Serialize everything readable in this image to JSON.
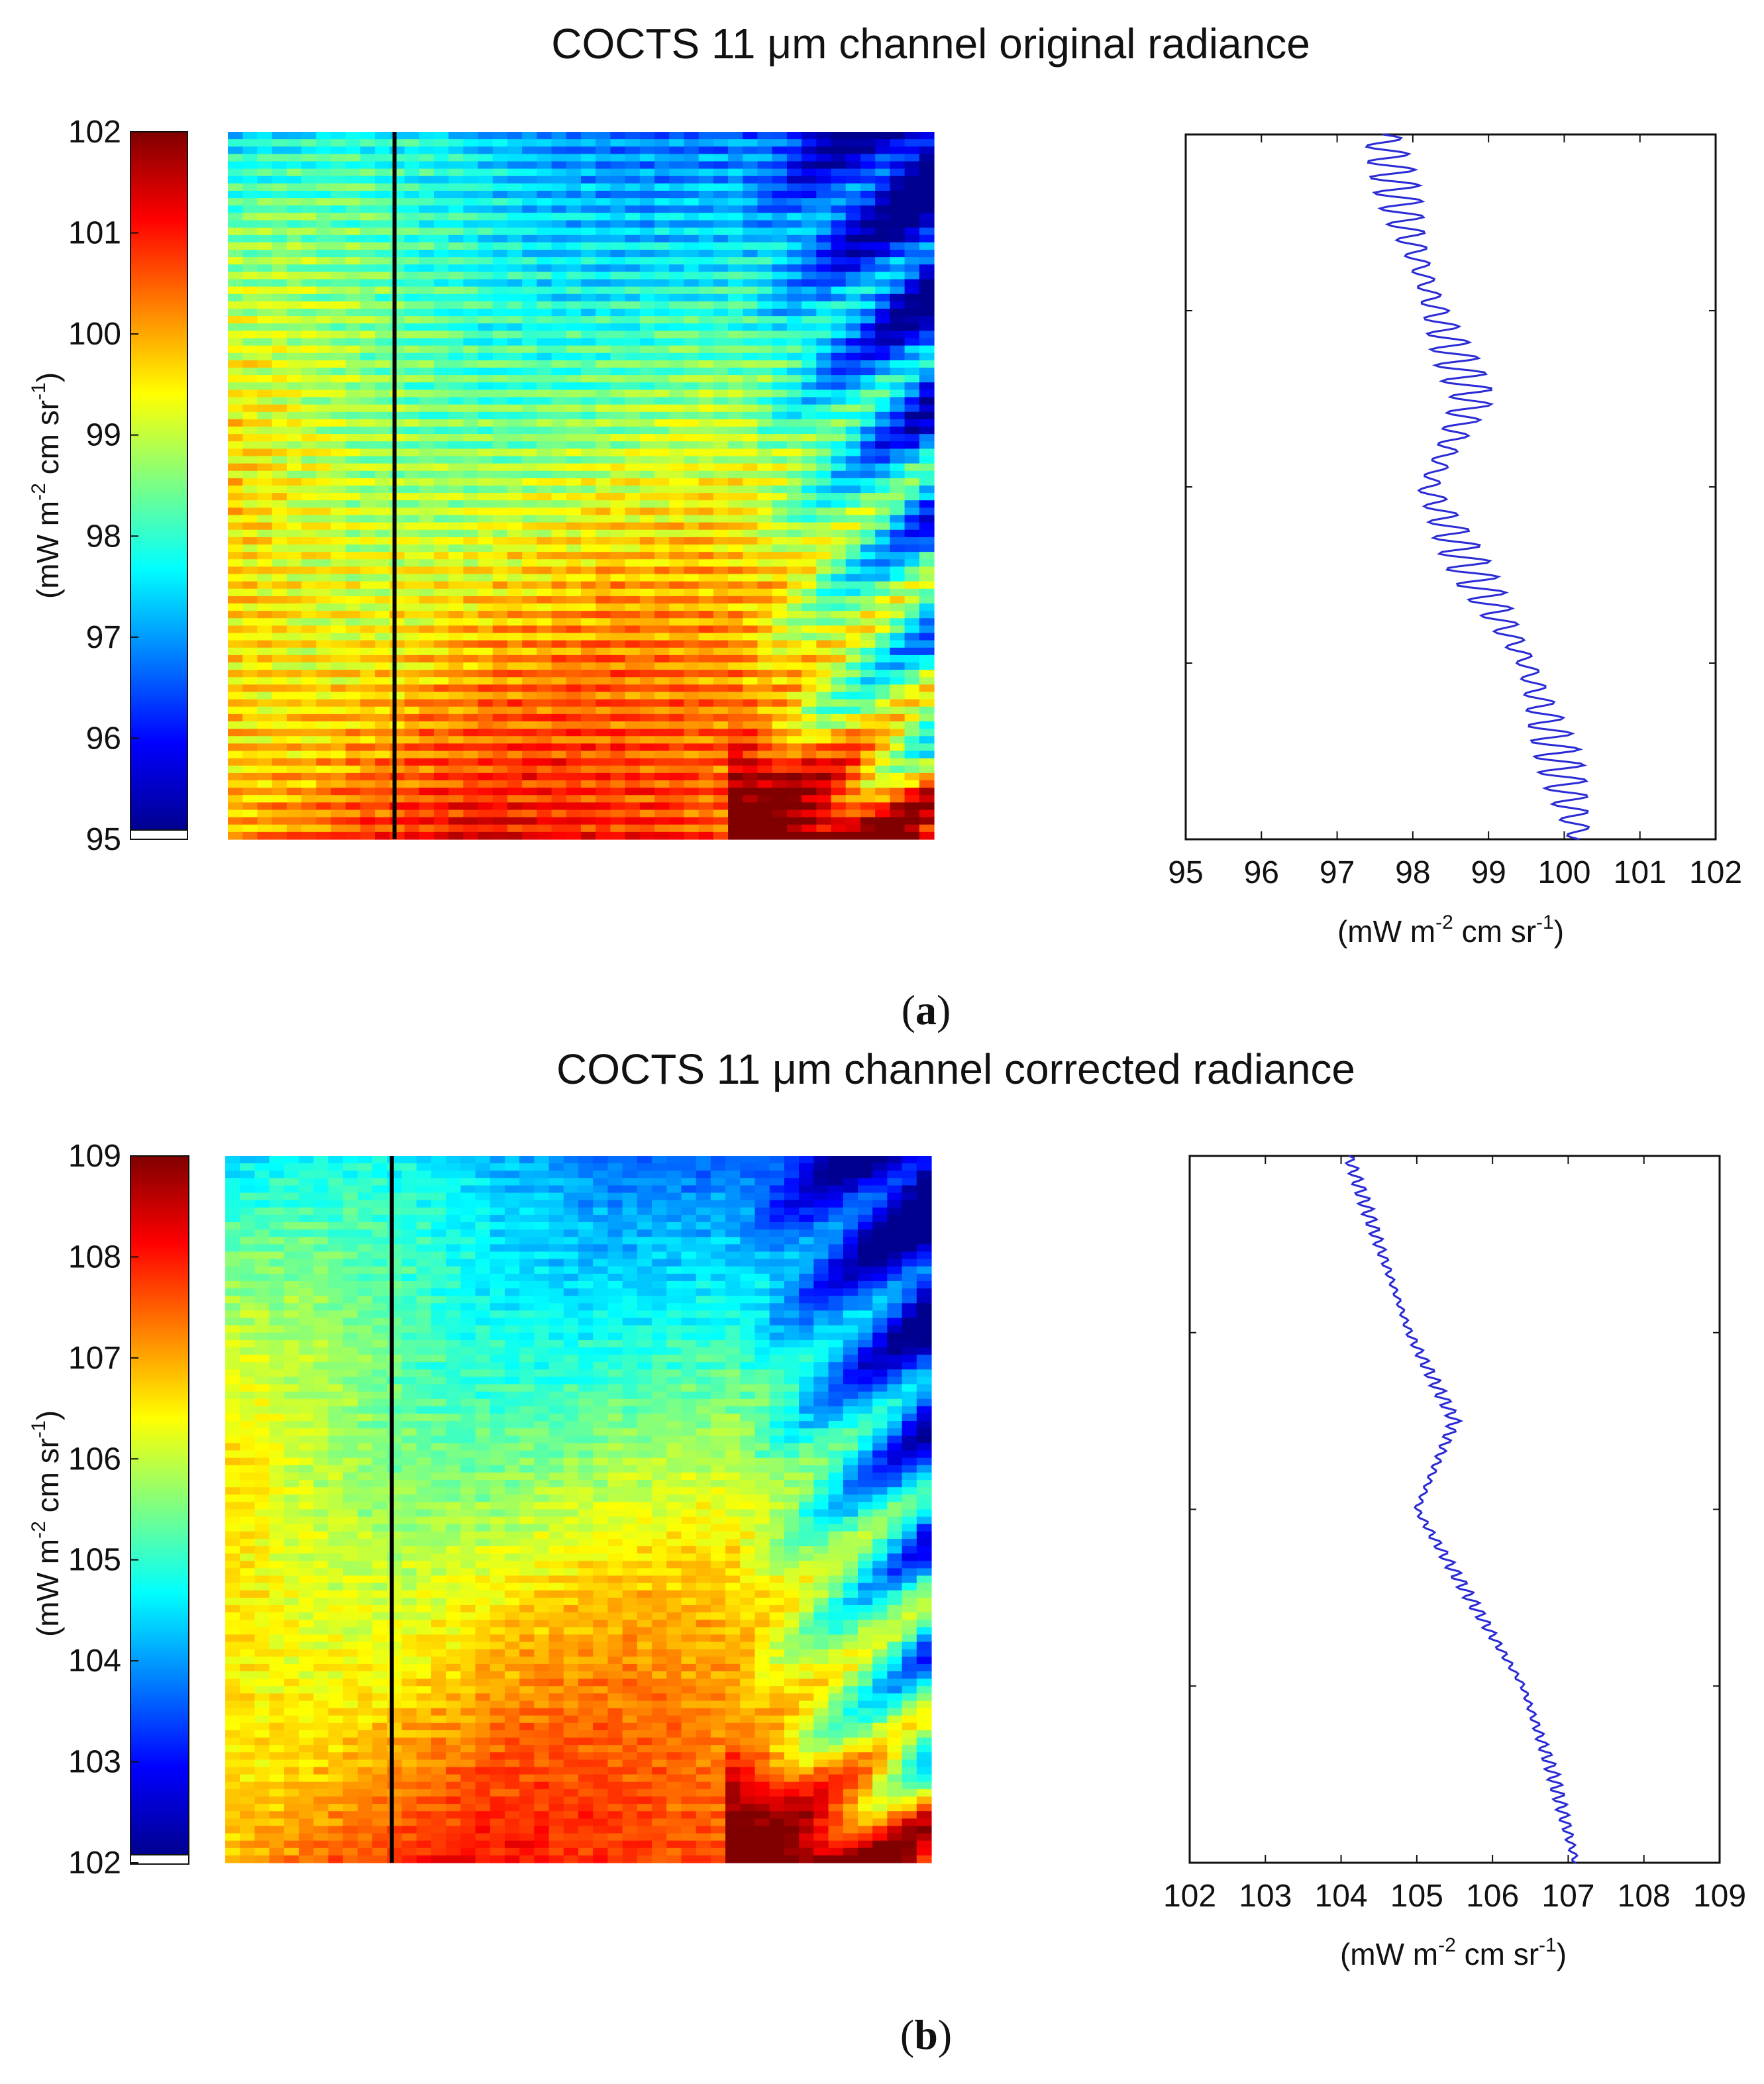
{
  "figure": {
    "panels": [
      {
        "label": "(a)",
        "label_letter": "a",
        "title_prefix": "COCTS 11 ",
        "title_unit_symbol": "μ",
        "title_suffix": "m channel original radiance"
      },
      {
        "label": "(b)",
        "label_letter": "b",
        "title_prefix": "COCTS 11 ",
        "title_unit_symbol": "μ",
        "title_suffix": "m channel corrected radiance"
      }
    ]
  },
  "colors": {
    "profile_line": "#2b2bd6",
    "transect_line": "#000000",
    "jet": [
      "#00008f",
      "#0000ff",
      "#0080ff",
      "#00ffff",
      "#80ff80",
      "#ffff00",
      "#ff8000",
      "#ff0000",
      "#800000"
    ]
  },
  "chart_data": [
    {
      "type": "heatmap",
      "panel": "a",
      "title": "COCTS 11 μm channel original radiance",
      "colorbar": {
        "ticks": [
          "95",
          "96",
          "97",
          "98",
          "99",
          "100",
          "101",
          "102"
        ],
        "range": [
          95,
          102
        ],
        "label_parts": [
          "(mW m",
          "-2",
          " cm sr",
          "-1",
          ")"
        ],
        "colormap": "jet"
      },
      "striping": "strong",
      "transect_column_fraction": 0.236
    },
    {
      "type": "line",
      "panel": "a",
      "xlabel_parts": [
        "(mW m",
        "-2",
        " cm sr",
        "-1",
        ")"
      ],
      "xticks": [
        "95",
        "96",
        "97",
        "98",
        "99",
        "100",
        "101",
        "102"
      ],
      "xlim": [
        95,
        102
      ],
      "series": [
        {
          "name": "original radiance profile",
          "y_top_to_bottom": [
            0,
            0.125,
            0.25,
            0.375,
            0.5,
            0.625,
            0.75,
            0.875,
            1.0
          ],
          "mean": [
            97.6,
            97.9,
            98.3,
            98.8,
            98.2,
            98.8,
            99.5,
            99.9,
            100.2
          ],
          "oscillation_amplitude": 0.32,
          "oscillation_cycles": 45
        }
      ]
    },
    {
      "type": "heatmap",
      "panel": "b",
      "title": "COCTS 11 μm channel corrected radiance",
      "colorbar": {
        "ticks": [
          "102",
          "103",
          "104",
          "105",
          "106",
          "107",
          "108",
          "109"
        ],
        "range": [
          102,
          109
        ],
        "label_parts": [
          "(mW m",
          "-2",
          " cm sr",
          "-1",
          ")"
        ],
        "colormap": "jet"
      },
      "striping": "weak",
      "transect_column_fraction": 0.236
    },
    {
      "type": "line",
      "panel": "b",
      "xlabel_parts": [
        "(mW m",
        "-2",
        " cm sr",
        "-1",
        ")"
      ],
      "xticks": [
        "102",
        "103",
        "104",
        "105",
        "106",
        "107",
        "108",
        "109"
      ],
      "xlim": [
        102,
        109
      ],
      "series": [
        {
          "name": "corrected radiance profile",
          "y_top_to_bottom": [
            0,
            0.125,
            0.25,
            0.375,
            0.5,
            0.625,
            0.75,
            0.875,
            1.0
          ],
          "mean": [
            104.1,
            104.5,
            104.9,
            105.5,
            105.0,
            105.7,
            106.4,
            106.8,
            107.1
          ],
          "oscillation_amplitude": 0.09,
          "oscillation_cycles": 70
        }
      ]
    }
  ]
}
